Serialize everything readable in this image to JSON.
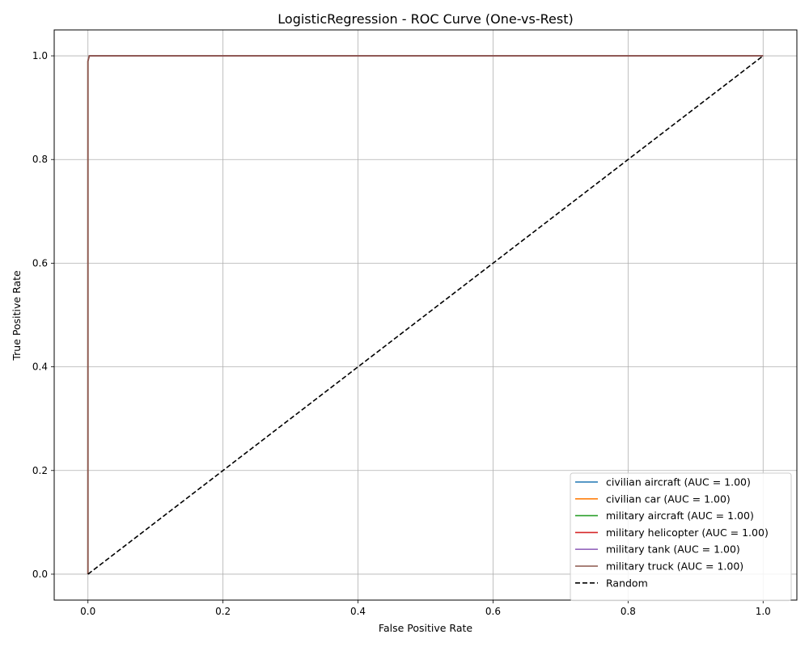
{
  "chart_data": {
    "type": "line",
    "title": "LogisticRegression - ROC Curve (One-vs-Rest)",
    "xlabel": "False Positive Rate",
    "ylabel": "True Positive Rate",
    "xlim": [
      -0.05,
      1.05
    ],
    "ylim": [
      -0.05,
      1.05
    ],
    "xticks": [
      0.0,
      0.2,
      0.4,
      0.6,
      0.8,
      1.0
    ],
    "yticks": [
      0.0,
      0.2,
      0.4,
      0.6,
      0.8,
      1.0
    ],
    "xtick_labels": [
      "0.0",
      "0.2",
      "0.4",
      "0.6",
      "0.8",
      "1.0"
    ],
    "ytick_labels": [
      "0.0",
      "0.2",
      "0.4",
      "0.6",
      "0.8",
      "1.0"
    ],
    "grid": true,
    "legend_position": "bottom-right",
    "series": [
      {
        "name": "civilian aircraft (AUC = 1.00)",
        "color": "#1f77b4",
        "style": "solid",
        "x": [
          0.0,
          0.0,
          0.002,
          1.0
        ],
        "y": [
          0.0,
          0.99,
          1.0,
          1.0
        ]
      },
      {
        "name": "civilian car (AUC = 1.00)",
        "color": "#ff7f0e",
        "style": "solid",
        "x": [
          0.0,
          0.0,
          0.002,
          1.0
        ],
        "y": [
          0.0,
          0.99,
          1.0,
          1.0
        ]
      },
      {
        "name": "military aircraft (AUC = 1.00)",
        "color": "#2ca02c",
        "style": "solid",
        "x": [
          0.0,
          0.0,
          0.002,
          1.0
        ],
        "y": [
          0.0,
          0.99,
          1.0,
          1.0
        ]
      },
      {
        "name": "military helicopter (AUC = 1.00)",
        "color": "#d62728",
        "style": "solid",
        "x": [
          0.0,
          0.0,
          0.002,
          1.0
        ],
        "y": [
          0.0,
          0.99,
          1.0,
          1.0
        ]
      },
      {
        "name": "military tank (AUC = 1.00)",
        "color": "#9467bd",
        "style": "solid",
        "x": [
          0.0,
          0.0,
          0.002,
          1.0
        ],
        "y": [
          0.0,
          0.99,
          1.0,
          1.0
        ]
      },
      {
        "name": "military truck (AUC = 1.00)",
        "color": "#8c564b",
        "style": "solid",
        "x": [
          0.0,
          0.0,
          0.002,
          1.0
        ],
        "y": [
          0.0,
          0.99,
          1.0,
          1.0
        ]
      },
      {
        "name": "Random",
        "color": "#000000",
        "style": "dashed",
        "x": [
          0.0,
          1.0
        ],
        "y": [
          0.0,
          1.0
        ]
      }
    ]
  }
}
